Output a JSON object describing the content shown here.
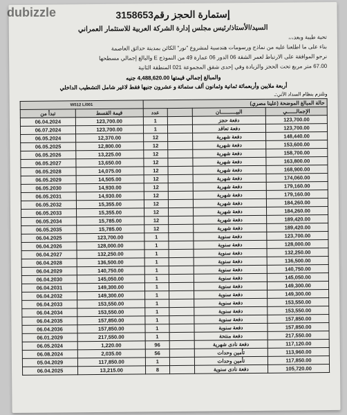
{
  "watermark": "dubizzle",
  "title_prefix": "إستمارة الحجز رقم",
  "title_number": "3158653",
  "subtitle": "السيد/الأستاذ/رئيس مجلس إدارة الشركة العربية للاستثمار العمراني",
  "greeting": "تحية طيبة وبعد،،،",
  "body1": "بناء على ما اطلعنا عليه من نماذج ورسومات هندسية لمشروع \"نور\" الكائن بمدينة حدائق العاصمة",
  "body2": "نرجو الموافقة على الارتباط لعمر الشقة 06 الدور 06 عمارة 49 من النموذج E والبالغ إجمالي مسطحها",
  "body3": "67.00 متر مربع تحت الحجز والزيادة وفي إحدى شقق المجموعة 021 المنطقة الثانية",
  "amount_label": "والمبالغ إجمالي قيمتها",
  "amount_value": "4,488,620.00",
  "amount_unit": "جنيه",
  "amount_words": "أربعة ملايين وأربعمائة ثمانية وثمانون ألف ستمائة و عشرون جنيها فقط لاغير شامل التشطيب الداخلي",
  "table_label": "وتلتزم بنظام السداد الآتي:ـ",
  "unit_codes": "W512    L/001",
  "table_note": "حالة المبالغ الموضحة (علينا مصري)",
  "headers": {
    "date": "تبدأ من",
    "unit_price": "قيمة القسط",
    "qty": "عدد",
    "ref": "",
    "desc": "البيــــــــــان",
    "amount": "الإجمالــــــي"
  },
  "rows": [
    {
      "date": "06.04.2024",
      "unit": "123,700.00",
      "qty": "1",
      "desc": "دفعة حجز",
      "amount": "123,700.00"
    },
    {
      "date": "06.07.2024",
      "unit": "123,700.00",
      "qty": "1",
      "desc": "دفعة تعاقد",
      "amount": "123,700.00"
    },
    {
      "date": "06.05.2024",
      "unit": "12,370.00",
      "qty": "12",
      "desc": "دفعة شهرية",
      "amount": "148,440.00"
    },
    {
      "date": "06.05.2025",
      "unit": "12,800.00",
      "qty": "12",
      "desc": "دفعة شهرية",
      "amount": "153,600.00"
    },
    {
      "date": "06.05.2026",
      "unit": "13,225.00",
      "qty": "12",
      "desc": "دفعة شهرية",
      "amount": "158,700.00"
    },
    {
      "date": "06.05.2027",
      "unit": "13,650.00",
      "qty": "12",
      "desc": "دفعة شهرية",
      "amount": "163,800.00"
    },
    {
      "date": "06.05.2028",
      "unit": "14,075.00",
      "qty": "12",
      "desc": "دفعة شهرية",
      "amount": "168,900.00"
    },
    {
      "date": "06.05.2029",
      "unit": "14,505.00",
      "qty": "12",
      "desc": "دفعة شهرية",
      "amount": "174,060.00"
    },
    {
      "date": "06.05.2030",
      "unit": "14,930.00",
      "qty": "12",
      "desc": "دفعة شهرية",
      "amount": "179,160.00"
    },
    {
      "date": "06.05.2031",
      "unit": "14,930.00",
      "qty": "12",
      "desc": "دفعة شهرية",
      "amount": "179,160.00"
    },
    {
      "date": "06.05.2032",
      "unit": "15,355.00",
      "qty": "12",
      "desc": "دفعة شهرية",
      "amount": "184,260.00"
    },
    {
      "date": "06.05.2033",
      "unit": "15,355.00",
      "qty": "12",
      "desc": "دفعة شهرية",
      "amount": "184,260.00"
    },
    {
      "date": "06.05.2034",
      "unit": "15,785.00",
      "qty": "12",
      "desc": "دفعة شهرية",
      "amount": "189,420.00"
    },
    {
      "date": "06.05.2035",
      "unit": "15,785.00",
      "qty": "12",
      "desc": "دفعة شهرية",
      "amount": "189,420.00"
    },
    {
      "date": "06.04.2025",
      "unit": "123,700.00",
      "qty": "1",
      "desc": "دفعة سنوية",
      "amount": "123,700.00"
    },
    {
      "date": "06.04.2026",
      "unit": "128,000.00",
      "qty": "1",
      "desc": "دفعة سنوية",
      "amount": "128,000.00"
    },
    {
      "date": "06.04.2027",
      "unit": "132,250.00",
      "qty": "1",
      "desc": "دفعة سنوية",
      "amount": "132,250.00"
    },
    {
      "date": "06.04.2028",
      "unit": "136,500.00",
      "qty": "1",
      "desc": "دفعة سنوية",
      "amount": "136,500.00"
    },
    {
      "date": "06.04.2029",
      "unit": "140,750.00",
      "qty": "1",
      "desc": "دفعة سنوية",
      "amount": "140,750.00"
    },
    {
      "date": "06.04.2030",
      "unit": "145,050.00",
      "qty": "1",
      "desc": "دفعة سنوية",
      "amount": "145,050.00"
    },
    {
      "date": "06.04.2031",
      "unit": "149,300.00",
      "qty": "1",
      "desc": "دفعة سنوية",
      "amount": "149,300.00"
    },
    {
      "date": "06.04.2032",
      "unit": "149,300.00",
      "qty": "1",
      "desc": "دفعة سنوية",
      "amount": "149,300.00"
    },
    {
      "date": "06.04.2033",
      "unit": "153,550.00",
      "qty": "1",
      "desc": "دفعة سنوية",
      "amount": "153,550.00"
    },
    {
      "date": "06.04.2034",
      "unit": "153,550.00",
      "qty": "1",
      "desc": "دفعة سنوية",
      "amount": "153,550.00"
    },
    {
      "date": "06.04.2035",
      "unit": "157,850.00",
      "qty": "1",
      "desc": "دفعة سنوية",
      "amount": "157,850.00"
    },
    {
      "date": "06.04.2036",
      "unit": "157,850.00",
      "qty": "1",
      "desc": "دفعة سنوية",
      "amount": "157,850.00"
    },
    {
      "date": "06.01.2029",
      "unit": "217,550.00",
      "qty": "1",
      "desc": "دفعة منتحة",
      "amount": "217,550.00"
    },
    {
      "date": "06.05.2024",
      "unit": "1,220.00",
      "qty": "96",
      "desc": "دفعة نادى شهرية",
      "amount": "117,120.00"
    },
    {
      "date": "06.08.2024",
      "unit": "2,035.00",
      "qty": "56",
      "desc": "تأمين وحدات",
      "amount": "113,960.00"
    },
    {
      "date": "05.04.2029",
      "unit": "117,850.00",
      "qty": "1",
      "desc": "تأمين وحدات",
      "amount": "117,850.00"
    },
    {
      "date": "06.04.2025",
      "unit": "13,215.00",
      "qty": "8",
      "desc": "دفعة نادى سنوية",
      "amount": "105,720.00"
    }
  ]
}
